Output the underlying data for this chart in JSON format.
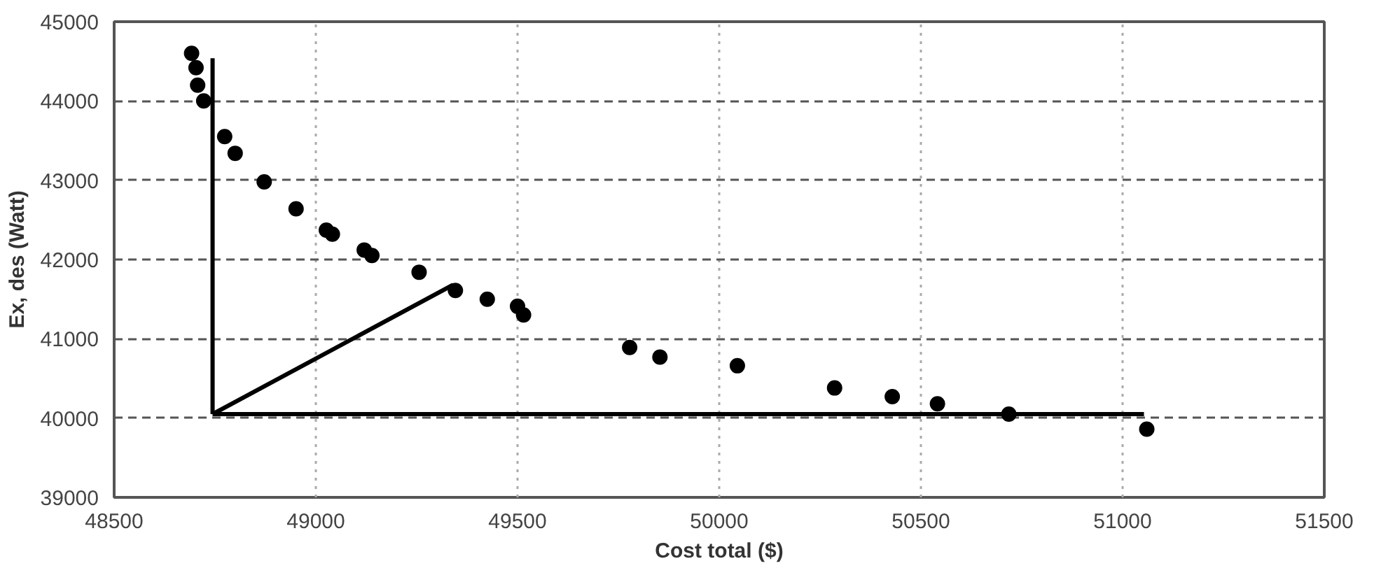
{
  "chart_data": {
    "type": "scatter",
    "xlabel": "Cost total ($)",
    "ylabel": "Ex, des (Watt)",
    "xlim": [
      48500,
      51500
    ],
    "xticks": [
      48500,
      49000,
      49500,
      50000,
      50500,
      51000,
      51500
    ],
    "ylim": [
      39000,
      45000
    ],
    "yticks": [
      39000,
      40000,
      41000,
      42000,
      43000,
      44000,
      45000
    ],
    "grid": true,
    "series": [
      {
        "marker": "circle",
        "color": "#000000",
        "x": [
          48692,
          48703,
          48707,
          48722,
          48774,
          48800,
          48872,
          48951,
          49026,
          49041,
          49120,
          49139,
          49256,
          49346,
          49425,
          49500,
          49515,
          49778,
          49853,
          50045,
          50286,
          50429,
          50541,
          50718,
          51060
        ],
        "values": [
          44600,
          44420,
          44200,
          44000,
          43550,
          43340,
          42980,
          42640,
          42370,
          42320,
          42120,
          42050,
          41840,
          41610,
          41500,
          41410,
          41300,
          40890,
          40770,
          40660,
          40380,
          40270,
          40180,
          40050,
          39860
        ]
      },
      {
        "type": "line",
        "marker": "none",
        "color": "#000000",
        "x": [
          48744,
          48744
        ],
        "values": [
          40050,
          44540
        ]
      },
      {
        "type": "line",
        "marker": "none",
        "color": "#000000",
        "x": [
          48744,
          51053
        ],
        "values": [
          40050,
          40050
        ]
      },
      {
        "type": "line",
        "marker": "none",
        "color": "#000000",
        "x": [
          48744,
          49340
        ],
        "values": [
          40050,
          41680
        ]
      }
    ]
  }
}
